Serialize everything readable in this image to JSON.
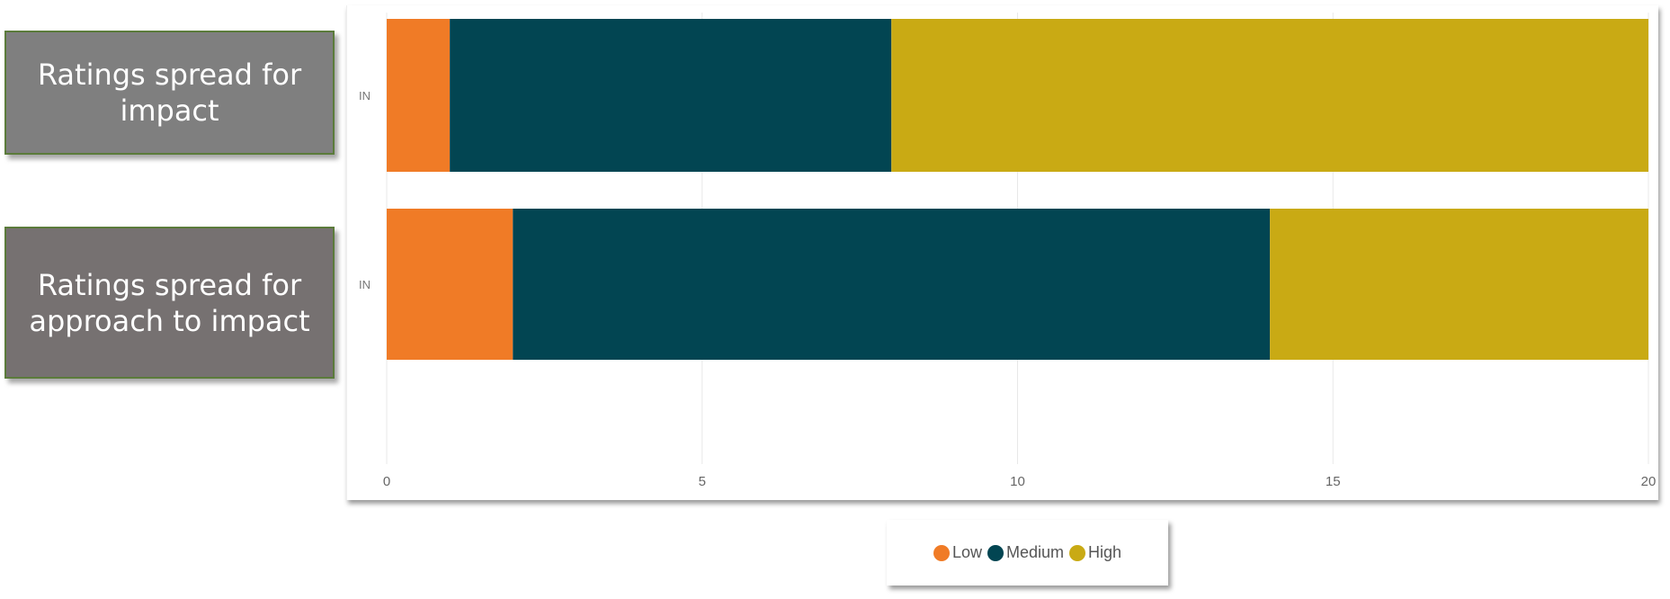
{
  "labels": [
    "Ratings spread for impact",
    "Ratings spread for approach to impact"
  ],
  "label_colors": [
    "#7f7f7f",
    "#767171"
  ],
  "chart_data": {
    "type": "bar",
    "orientation": "horizontal",
    "stacked": true,
    "categories": [
      "IN",
      "IN"
    ],
    "series": [
      {
        "name": "Low",
        "color": "#F07B26",
        "values": [
          1,
          2
        ]
      },
      {
        "name": "Medium",
        "color": "#024552",
        "values": [
          7,
          12
        ]
      },
      {
        "name": "High",
        "color": "#C9AA14",
        "values": [
          12,
          6
        ]
      }
    ],
    "xlim": [
      0,
      20
    ],
    "xticks": [
      0,
      5,
      10,
      15,
      20
    ],
    "grid": true,
    "legend_position": "bottom"
  }
}
